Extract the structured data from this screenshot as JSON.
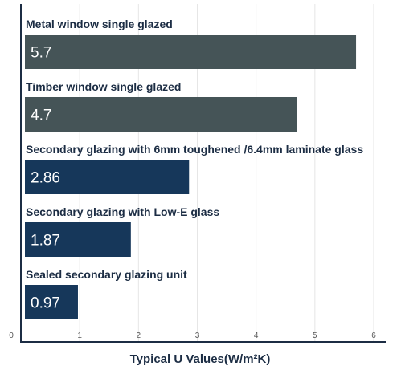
{
  "chart_data": {
    "type": "bar",
    "orientation": "horizontal",
    "categories": [
      "Metal window single glazed",
      "Timber window single glazed",
      "Secondary glazing with 6mm toughened /6.4mm laminate glass",
      "Secondary glazing with Low-E glass",
      "Sealed secondary glazing unit"
    ],
    "values": [
      5.7,
      4.7,
      2.86,
      1.87,
      0.97
    ],
    "value_labels": [
      "5.7",
      "4.7",
      "2.86",
      "1.87",
      "0.97"
    ],
    "bar_colors": [
      "#455457",
      "#455457",
      "#16375a",
      "#16375a",
      "#16375a"
    ],
    "title": "",
    "xlabel": "Typical U Values(W/m²K)",
    "ylabel": "",
    "xlim": [
      0,
      6
    ],
    "x_ticks": [
      0,
      1,
      2,
      3,
      4,
      5,
      6
    ],
    "grid": true,
    "legend": "none",
    "colors": {
      "axis": "#1c2d44",
      "grid": "#e6e6e6",
      "label": "#1c2d44",
      "value_text": "#ffffff"
    }
  }
}
